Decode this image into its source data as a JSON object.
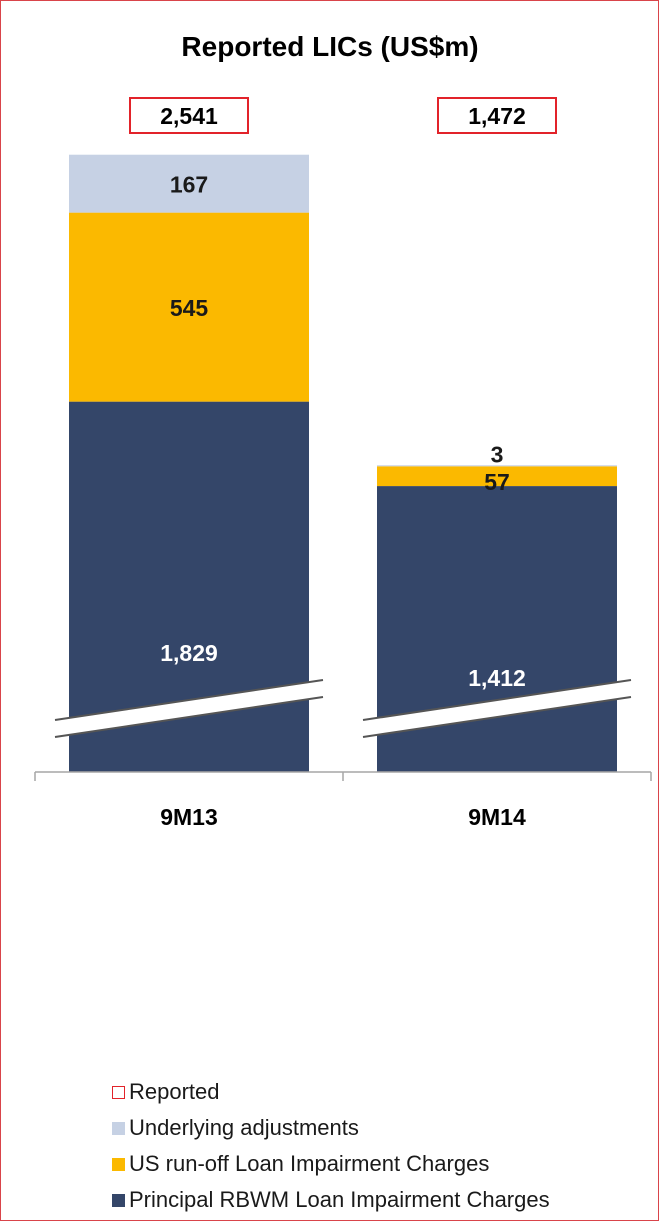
{
  "chart_data": {
    "type": "bar",
    "stacked": true,
    "title": "Reported LICs (US$m)",
    "categories": [
      "9M13",
      "9M14"
    ],
    "totals": [
      2541,
      1472
    ],
    "totals_series": "Reported",
    "axis_break": true,
    "series": [
      {
        "name": "Principal RBWM Loan Impairment Charges",
        "values": [
          1829,
          1412
        ],
        "color": "#344669",
        "label_color": "#ffffff"
      },
      {
        "name": "US run-off Loan Impairment Charges",
        "values": [
          545,
          57
        ],
        "color": "#fbb900",
        "label_color": "#1a1a1a"
      },
      {
        "name": "Underlying adjustments",
        "values": [
          167,
          3
        ],
        "color": "#c6d1e4",
        "label_color": "#1a1a1a"
      }
    ],
    "legend": {
      "placement": "bottom-left",
      "items": [
        {
          "label": "Reported",
          "style": "outline",
          "color": "#e2232a"
        },
        {
          "label": "Underlying adjustments",
          "style": "fill",
          "color": "#c6d1e4"
        },
        {
          "label": "US run-off Loan Impairment Charges",
          "style": "fill",
          "color": "#fbb900"
        },
        {
          "label": "Principal RBWM Loan Impairment Charges",
          "style": "fill",
          "color": "#344669"
        }
      ]
    }
  }
}
